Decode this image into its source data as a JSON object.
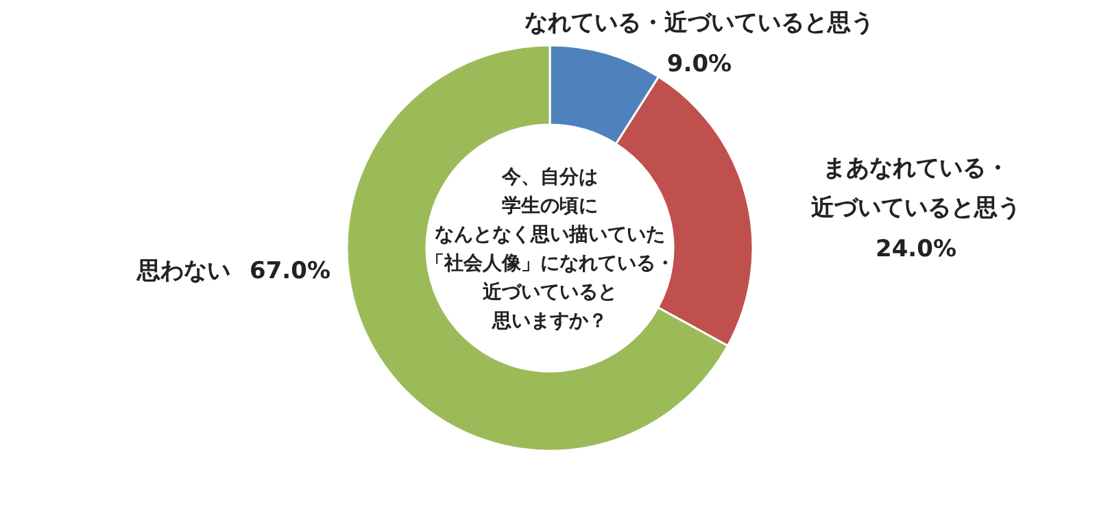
{
  "chart_data": {
    "type": "donut",
    "title": "今、自分は学生の頃になんとなく思い描いていた「社会人像」になれている・近づいていると思いますか？",
    "categories": [
      "なれている・近づいていると思う",
      "まあなれている・近づいていると思う",
      "思わない"
    ],
    "values": [
      9.0,
      24.0,
      67.0
    ],
    "colors": [
      "#4f81bd",
      "#c0504d",
      "#9bbb59"
    ],
    "value_labels": [
      "9.0%",
      "24.0%",
      "67.0%"
    ]
  }
}
